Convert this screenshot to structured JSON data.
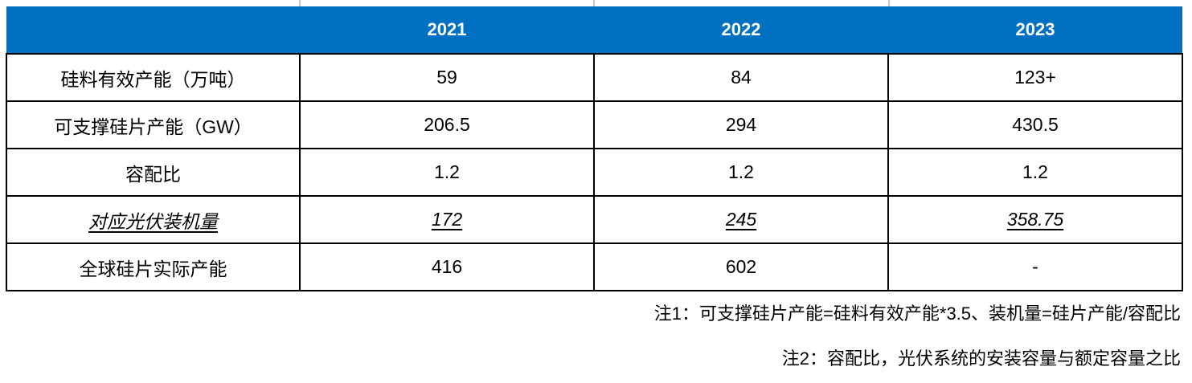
{
  "theme": {
    "header_bg": "#0070C0",
    "header_text": "#FFFFFF",
    "table_border": "#000000",
    "gridline_stub_gray": "#C9C9C9",
    "body_text": "#000000"
  },
  "chart_data": {
    "type": "table",
    "title": "",
    "columns": [
      "",
      "2021",
      "2022",
      "2023"
    ],
    "rows": [
      {
        "label": "硅料有效产能（万吨）",
        "values": [
          "59",
          "84",
          "123+"
        ],
        "style": "normal"
      },
      {
        "label": "可支撑硅片产能（GW）",
        "values": [
          "206.5",
          "294",
          "430.5"
        ],
        "style": "normal"
      },
      {
        "label": "容配比",
        "values": [
          "1.2",
          "1.2",
          "1.2"
        ],
        "style": "normal"
      },
      {
        "label": "对应光伏装机量",
        "values": [
          "172",
          "245",
          "358.75"
        ],
        "style": "italic-underline"
      },
      {
        "label": "全球硅片实际产能",
        "values": [
          "416",
          "602",
          "-"
        ],
        "style": "normal"
      }
    ],
    "notes": [
      "注1：可支撑硅片产能=硅料有效产能*3.5、装机量=硅片产能/容配比",
      "注2：容配比，光伏系统的安装容量与额定容量之比"
    ]
  }
}
